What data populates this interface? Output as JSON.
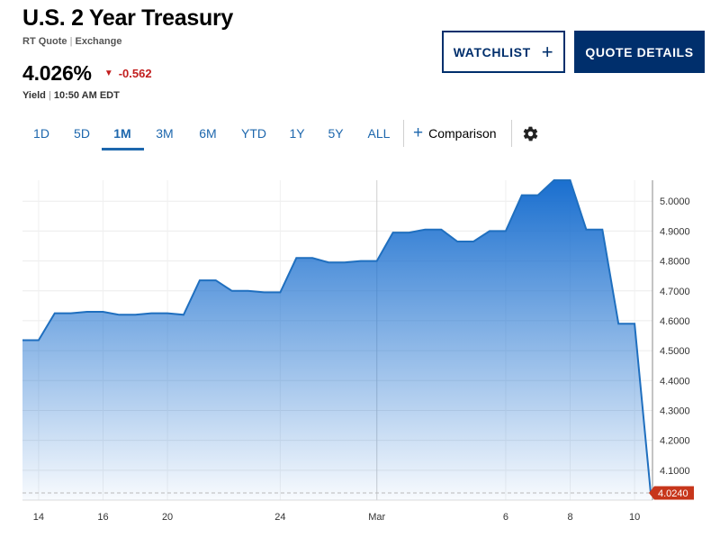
{
  "header": {
    "title": "U.S. 2 Year Treasury",
    "quote_type": "RT Quote",
    "exchange": "Exchange",
    "price": "4.026%",
    "change": "-0.562",
    "yield_label": "Yield",
    "time": "10:50 AM EDT"
  },
  "buttons": {
    "watchlist": "WATCHLIST",
    "quote_details": "QUOTE DETAILS"
  },
  "ranges": [
    "1D",
    "5D",
    "1M",
    "3M",
    "6M",
    "YTD",
    "1Y",
    "5Y",
    "ALL"
  ],
  "active_range": "1M",
  "comparison_label": "Comparison",
  "icons": [
    "plus-icon",
    "gear-icon",
    "down-triangle-icon"
  ],
  "colors": {
    "navy": "#002f6c",
    "link_blue": "#1d67ad",
    "line": "#1f6fbf",
    "negative": "#c21e1e",
    "last_badge": "#c7361b"
  },
  "chart_data": {
    "type": "area",
    "x_tick_labels": [
      "14",
      "16",
      "20",
      "24",
      "Mar",
      "6",
      "8",
      "10"
    ],
    "y_tick_labels": [
      "4.1000",
      "4.2000",
      "4.3000",
      "4.4000",
      "4.5000",
      "4.6000",
      "4.7000",
      "4.8000",
      "4.9000",
      "5.0000"
    ],
    "ylim": [
      4.0,
      5.07
    ],
    "points": [
      [
        0,
        4.535
      ],
      [
        1,
        4.535
      ],
      [
        2,
        4.625
      ],
      [
        3,
        4.625
      ],
      [
        4,
        4.63
      ],
      [
        5,
        4.63
      ],
      [
        6,
        4.62
      ],
      [
        7,
        4.62
      ],
      [
        8,
        4.625
      ],
      [
        9,
        4.625
      ],
      [
        10,
        4.62
      ],
      [
        11,
        4.735
      ],
      [
        12,
        4.735
      ],
      [
        13,
        4.7
      ],
      [
        14,
        4.7
      ],
      [
        15,
        4.695
      ],
      [
        16,
        4.695
      ],
      [
        17,
        4.81
      ],
      [
        18,
        4.81
      ],
      [
        19,
        4.795
      ],
      [
        20,
        4.795
      ],
      [
        21,
        4.8
      ],
      [
        22,
        4.8
      ],
      [
        23,
        4.895
      ],
      [
        24,
        4.895
      ],
      [
        25,
        4.905
      ],
      [
        26,
        4.905
      ],
      [
        27,
        4.865
      ],
      [
        28,
        4.865
      ],
      [
        29,
        4.9
      ],
      [
        30,
        4.9
      ],
      [
        31,
        5.02
      ],
      [
        32,
        5.02
      ],
      [
        33,
        5.07
      ],
      [
        34,
        5.07
      ],
      [
        35,
        4.905
      ],
      [
        36,
        4.905
      ],
      [
        37,
        4.59
      ],
      [
        38,
        4.59
      ],
      [
        39,
        4.024
      ]
    ],
    "last_value": "4.0240",
    "grid": true
  }
}
